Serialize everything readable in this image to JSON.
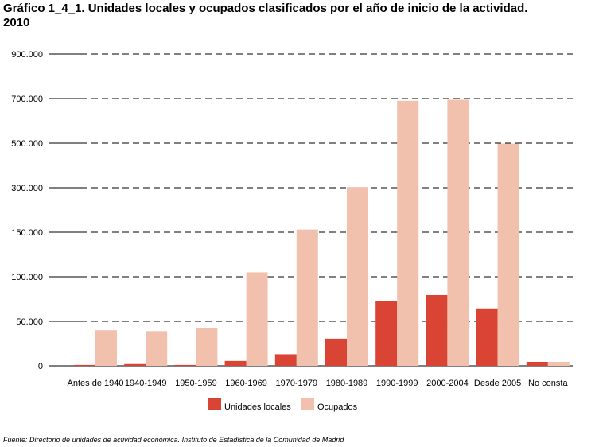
{
  "title_line1": "Gráfico 1_4_1. Unidades locales y ocupados clasificados por el año de inicio de la actividad.",
  "title_line2": "2010",
  "source_label": "Fuente:",
  "source_text": "Directorio de unidades de actividad económica. Instituto de Estadística de la Comunidad de Madrid",
  "chart_data": {
    "type": "bar",
    "title": "Gráfico 1_4_1. Unidades locales y ocupados clasificados por el año de inicio de la actividad. 2010",
    "xlabel": "",
    "ylabel": "",
    "y_axis_note": "non-linear category axis; tick labels printed as shown",
    "y_ticks": [
      "0",
      "50.000",
      "100.000",
      "150.000",
      "300.000",
      "500.000",
      "700.000",
      "900.000"
    ],
    "y_tick_values": [
      0,
      50000,
      100000,
      150000,
      300000,
      500000,
      700000,
      900000
    ],
    "grid": true,
    "legend_position": "bottom",
    "categories": [
      "Antes de 1940",
      "1940-1949",
      "1950-1959",
      "1960-1969",
      "1970-1979",
      "1980-1989",
      "1990-1999",
      "2000-2004",
      "Desde 2005",
      "No consta"
    ],
    "series": [
      {
        "name": "Unidades locales",
        "color": "#d94434",
        "values": [
          1000,
          2000,
          1000,
          5500,
          13000,
          30500,
          73000,
          79500,
          64500,
          4500
        ]
      },
      {
        "name": "Ocupados",
        "color": "#f2c1ad",
        "values": [
          40000,
          39000,
          42000,
          105000,
          159000,
          303000,
          690000,
          695000,
          498000,
          4500
        ]
      }
    ]
  }
}
